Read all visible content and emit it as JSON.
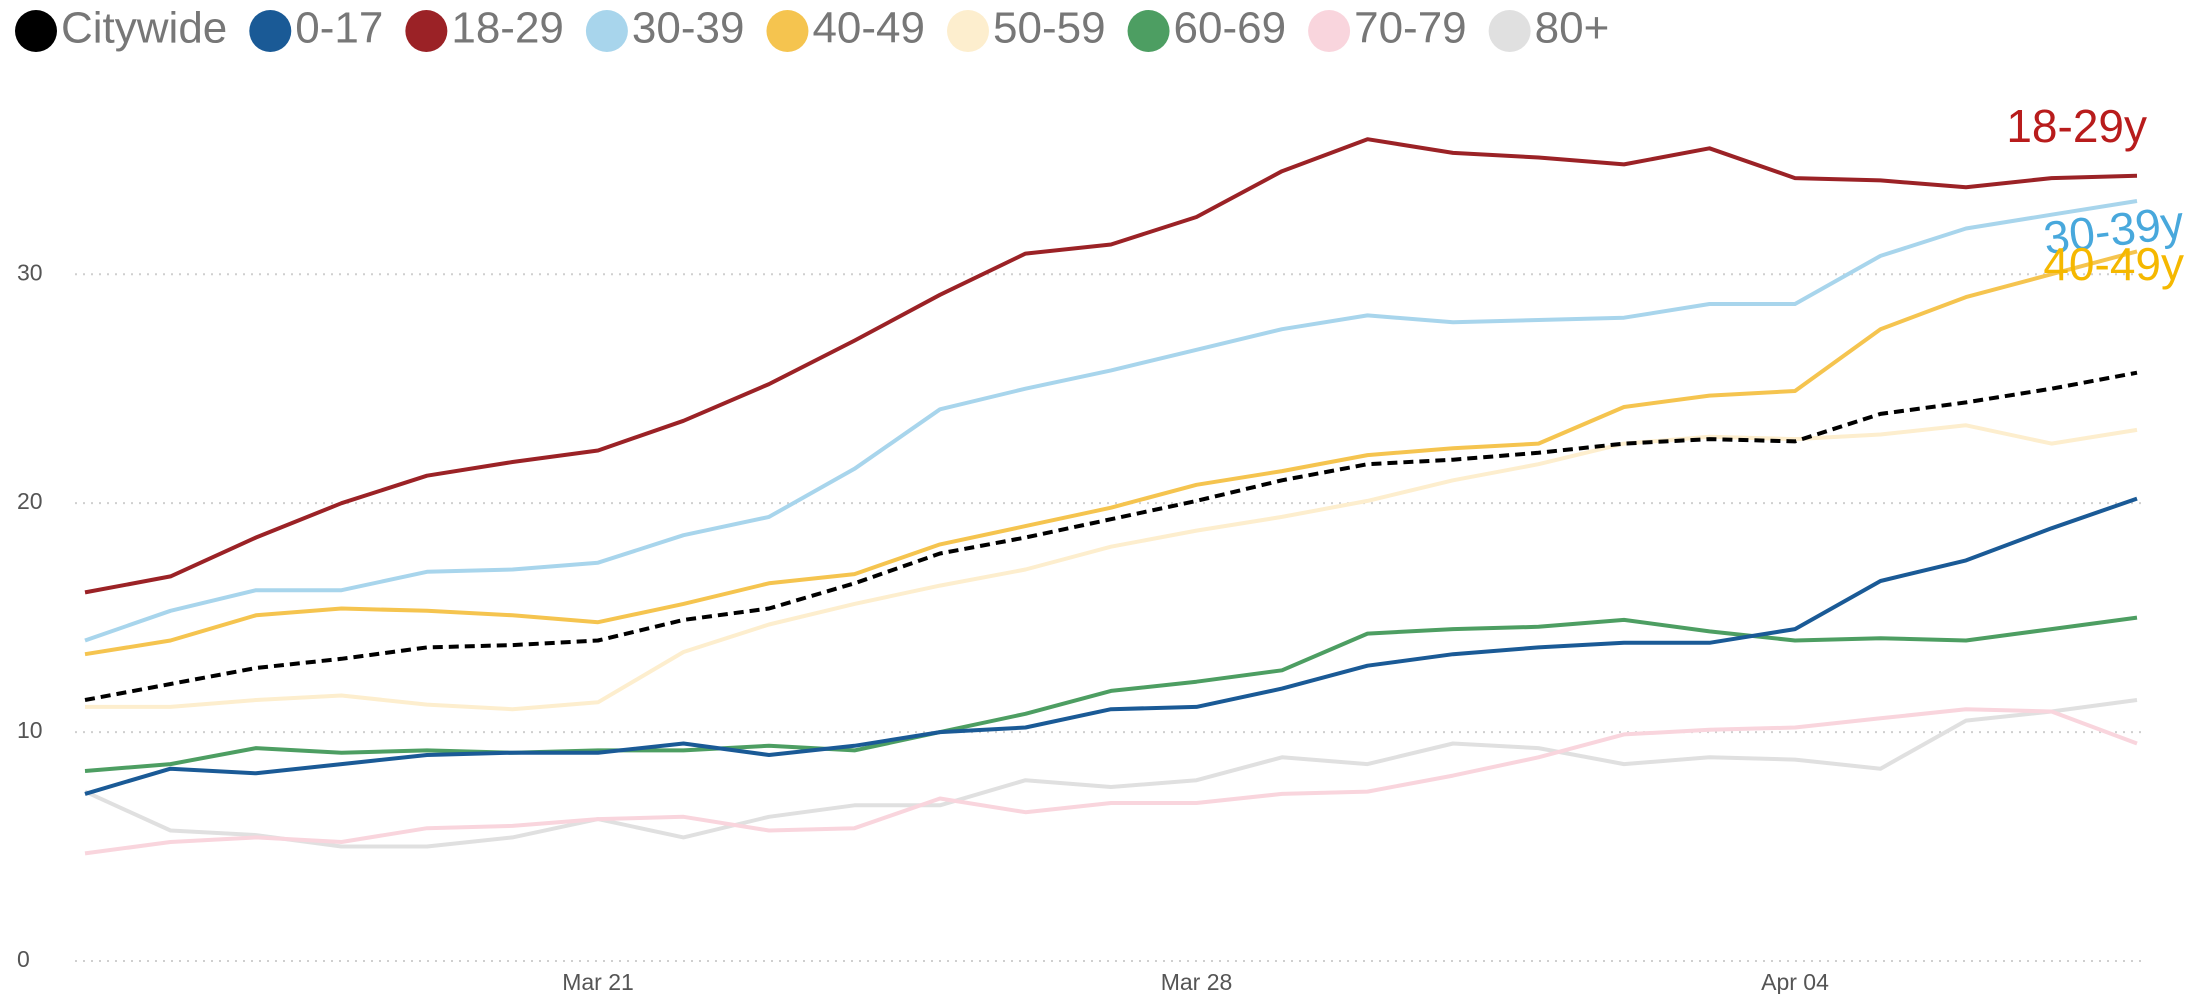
{
  "chart_data": {
    "type": "line",
    "categories": [
      null,
      null,
      null,
      null,
      null,
      null,
      "Mar 21",
      null,
      null,
      null,
      null,
      null,
      null,
      "Mar 28",
      null,
      null,
      null,
      null,
      null,
      null,
      "Apr 04",
      null,
      null,
      null,
      null
    ],
    "ylim": [
      0,
      37
    ],
    "yticks": [
      0,
      10,
      20,
      30
    ],
    "grid": true,
    "legend": "top",
    "series": [
      {
        "name": "Citywide",
        "color": "#000000",
        "dashed": true,
        "values": [
          11.4,
          12.1,
          12.8,
          13.2,
          13.7,
          13.8,
          14.0,
          14.9,
          15.4,
          16.5,
          17.8,
          18.5,
          19.3,
          20.1,
          21.0,
          21.7,
          21.9,
          22.2,
          22.6,
          22.8,
          22.7,
          23.9,
          24.4,
          25.0,
          25.7
        ]
      },
      {
        "name": "0-17",
        "color": "#1a5a96",
        "values": [
          7.3,
          8.4,
          8.2,
          8.6,
          9.0,
          9.1,
          9.1,
          9.5,
          9.0,
          9.4,
          10.0,
          10.2,
          11.0,
          11.1,
          11.9,
          12.9,
          13.4,
          13.7,
          13.9,
          13.9,
          14.5,
          16.6,
          17.5,
          18.9,
          20.2
        ]
      },
      {
        "name": "18-29",
        "color": "#9b2226",
        "values": [
          16.1,
          16.8,
          18.5,
          20.0,
          21.2,
          21.8,
          22.3,
          23.6,
          25.2,
          27.1,
          29.1,
          30.9,
          31.3,
          32.5,
          34.5,
          35.9,
          35.3,
          35.1,
          34.8,
          35.5,
          34.2,
          34.1,
          33.8,
          34.2,
          34.3
        ]
      },
      {
        "name": "30-39",
        "color": "#a8d5ec",
        "values": [
          14.0,
          15.3,
          16.2,
          16.2,
          17.0,
          17.1,
          17.4,
          18.6,
          19.4,
          21.5,
          24.1,
          25.0,
          25.8,
          26.7,
          27.6,
          28.2,
          27.9,
          28.0,
          28.1,
          28.7,
          28.7,
          30.8,
          32.0,
          32.6,
          33.2
        ]
      },
      {
        "name": "40-49",
        "color": "#f5c44f",
        "values": [
          13.4,
          14.0,
          15.1,
          15.4,
          15.3,
          15.1,
          14.8,
          15.6,
          16.5,
          16.9,
          18.2,
          19.0,
          19.8,
          20.8,
          21.4,
          22.1,
          22.4,
          22.6,
          24.2,
          24.7,
          24.9,
          27.6,
          29.0,
          30.0,
          31.0
        ]
      },
      {
        "name": "50-59",
        "color": "#fdeece",
        "values": [
          11.1,
          11.1,
          11.4,
          11.6,
          11.2,
          11.0,
          11.3,
          13.5,
          14.7,
          15.6,
          16.4,
          17.1,
          18.1,
          18.8,
          19.4,
          20.1,
          21.0,
          21.7,
          22.6,
          22.9,
          22.8,
          23.0,
          23.4,
          22.6,
          23.2
        ]
      },
      {
        "name": "60-69",
        "color": "#4d9e62",
        "values": [
          8.3,
          8.6,
          9.3,
          9.1,
          9.2,
          9.1,
          9.2,
          9.2,
          9.4,
          9.2,
          10.0,
          10.8,
          11.8,
          12.2,
          12.7,
          14.3,
          14.5,
          14.6,
          14.9,
          14.4,
          14.0,
          14.1,
          14.0,
          14.5,
          15.0
        ]
      },
      {
        "name": "70-79",
        "color": "#f9d5dd",
        "values": [
          4.7,
          5.2,
          5.4,
          5.2,
          5.8,
          5.9,
          6.2,
          6.3,
          5.7,
          5.8,
          7.1,
          6.5,
          6.9,
          6.9,
          7.3,
          7.4,
          8.1,
          8.9,
          9.9,
          10.1,
          10.2,
          10.6,
          11.0,
          10.9,
          9.5
        ]
      },
      {
        "name": "80+",
        "color": "#e0e0e0",
        "values": [
          7.4,
          5.7,
          5.5,
          5.0,
          5.0,
          5.4,
          6.2,
          5.4,
          6.3,
          6.8,
          6.8,
          7.9,
          7.6,
          7.9,
          8.9,
          8.6,
          9.5,
          9.3,
          8.6,
          8.9,
          8.8,
          8.4,
          10.5,
          10.9,
          11.4
        ]
      }
    ],
    "annotations": [
      {
        "text": "18-29y",
        "color": "#b81c1c"
      },
      {
        "text": "30-39y",
        "color": "#48a8dc"
      },
      {
        "text": "40-49y",
        "color": "#f5b800"
      }
    ]
  }
}
